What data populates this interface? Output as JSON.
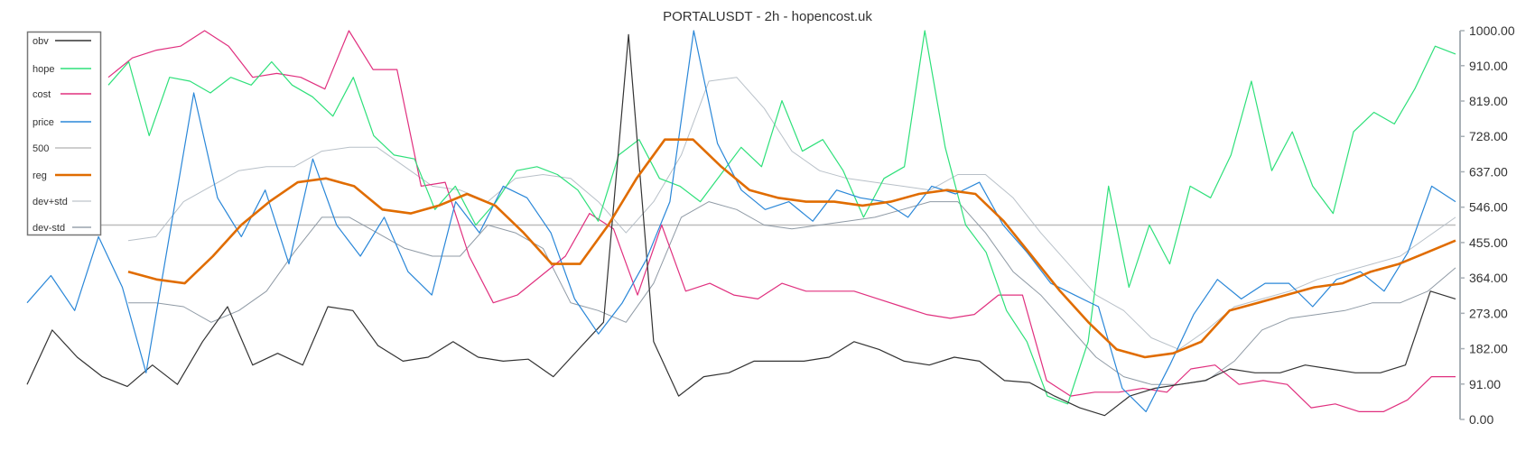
{
  "title": "PORTALUSDT - 2h - hopencost.uk",
  "chart_data": {
    "type": "line",
    "title": "PORTALUSDT - 2h - hopencost.uk",
    "xlabel": "",
    "ylabel": "",
    "ylim": [
      0,
      1000
    ],
    "y_ticks": [
      "1000.00",
      "910.00",
      "819.00",
      "728.00",
      "637.00",
      "546.00",
      "455.00",
      "364.00",
      "273.00",
      "182.00",
      "91.00",
      "0.00"
    ],
    "y_tick_values": [
      1000,
      910,
      819,
      728,
      637,
      546,
      455,
      364,
      273,
      182,
      91,
      0
    ],
    "grid": false,
    "legend_position": "top-left",
    "x": [
      0,
      1,
      2,
      3,
      4,
      5,
      6,
      7,
      8,
      9,
      10,
      11,
      12,
      13,
      14,
      15,
      16,
      17,
      18,
      19,
      20,
      21,
      22,
      23,
      24,
      25,
      26,
      27,
      28,
      29,
      30,
      31,
      32,
      33,
      34,
      35,
      36,
      37,
      38,
      39,
      40
    ],
    "series": [
      {
        "name": "obv",
        "color": "#333333",
        "width": 1.2,
        "values": [
          90,
          230,
          160,
          110,
          85,
          140,
          90,
          200,
          290,
          140,
          170,
          140,
          290,
          280,
          190,
          150,
          160,
          200,
          160,
          150,
          155,
          110,
          180,
          250,
          990,
          200,
          60,
          110,
          120,
          150,
          150,
          150,
          160,
          200,
          180,
          150,
          140,
          160,
          150,
          100,
          95,
          60,
          30,
          10,
          60,
          80,
          90,
          100,
          130,
          120,
          120,
          140,
          130,
          120,
          120,
          140,
          330,
          310
        ]
      },
      {
        "name": "hope",
        "color": "#2ee07a",
        "width": 1.2,
        "values": [
          860,
          920,
          730,
          880,
          870,
          840,
          880,
          860,
          920,
          860,
          830,
          780,
          880,
          730,
          680,
          670,
          540,
          600,
          500,
          560,
          640,
          650,
          630,
          590,
          510,
          680,
          720,
          620,
          600,
          560,
          630,
          700,
          650,
          820,
          690,
          720,
          640,
          520,
          620,
          650,
          1000,
          700,
          500,
          430,
          280,
          200,
          60,
          40,
          200,
          600,
          340,
          500,
          400,
          600,
          570,
          680,
          870,
          640,
          740,
          600,
          530,
          740,
          790,
          760,
          850,
          960,
          940
        ]
      },
      {
        "name": "cost",
        "color": "#e0307f",
        "width": 1.2,
        "values": [
          880,
          930,
          950,
          960,
          1000,
          960,
          880,
          890,
          880,
          850,
          1000,
          900,
          900,
          600,
          610,
          420,
          300,
          320,
          370,
          420,
          530,
          490,
          320,
          500,
          330,
          350,
          320,
          310,
          350,
          330,
          330,
          330,
          310,
          290,
          270,
          260,
          270,
          320,
          320,
          100,
          60,
          70,
          70,
          80,
          70,
          130,
          140,
          90,
          100,
          90,
          30,
          40,
          20,
          20,
          50,
          110,
          110
        ]
      },
      {
        "name": "price",
        "color": "#2a87d8",
        "width": 1.2,
        "values": [
          300,
          370,
          280,
          470,
          340,
          120,
          480,
          840,
          570,
          470,
          590,
          400,
          670,
          500,
          420,
          520,
          380,
          320,
          560,
          480,
          600,
          570,
          480,
          310,
          220,
          300,
          410,
          560,
          1000,
          710,
          590,
          540,
          560,
          510,
          590,
          570,
          560,
          520,
          600,
          580,
          610,
          500,
          430,
          350,
          320,
          290,
          80,
          20,
          140,
          270,
          360,
          310,
          350,
          350,
          290,
          360,
          380,
          330,
          430,
          600,
          560
        ]
      },
      {
        "name": "500",
        "color": "#bdbdbd",
        "width": 1.6,
        "values": [
          500,
          500
        ]
      },
      {
        "name": "reg",
        "color": "#e06c00",
        "width": 2.6,
        "values": [
          380,
          360,
          350,
          420,
          500,
          560,
          610,
          620,
          600,
          540,
          530,
          550,
          580,
          550,
          480,
          400,
          400,
          500,
          620,
          720,
          720,
          650,
          590,
          570,
          560,
          560,
          550,
          560,
          580,
          590,
          580,
          510,
          420,
          330,
          250,
          180,
          160,
          170,
          200,
          280,
          300,
          320,
          340,
          350,
          380,
          400,
          430,
          460
        ]
      },
      {
        "name": "dev+std",
        "color": "#b8c0c8",
        "width": 1.0,
        "values": [
          460,
          470,
          560,
          600,
          640,
          650,
          650,
          690,
          700,
          700,
          650,
          600,
          590,
          560,
          620,
          630,
          620,
          560,
          480,
          560,
          680,
          870,
          880,
          800,
          690,
          640,
          620,
          610,
          600,
          590,
          630,
          630,
          570,
          480,
          400,
          320,
          280,
          210,
          180,
          230,
          290,
          310,
          330,
          360,
          380,
          400,
          420,
          470,
          520
        ]
      },
      {
        "name": "dev-std",
        "color": "#8f9aa5",
        "width": 1.0,
        "values": [
          300,
          300,
          290,
          250,
          280,
          330,
          430,
          520,
          520,
          480,
          440,
          420,
          420,
          500,
          480,
          440,
          300,
          280,
          250,
          350,
          520,
          560,
          540,
          500,
          490,
          500,
          510,
          520,
          540,
          560,
          560,
          480,
          380,
          320,
          240,
          160,
          110,
          90,
          90,
          100,
          150,
          230,
          260,
          270,
          280,
          300,
          300,
          330,
          390
        ]
      }
    ]
  },
  "legend": {
    "items": [
      {
        "label": "obv",
        "color": "#333333",
        "width": 1.5
      },
      {
        "label": "hope",
        "color": "#2ee07a",
        "width": 1.5
      },
      {
        "label": "cost",
        "color": "#e0307f",
        "width": 1.5
      },
      {
        "label": "price",
        "color": "#2a87d8",
        "width": 1.5
      },
      {
        "label": "500",
        "color": "#bdbdbd",
        "width": 1.5
      },
      {
        "label": "reg",
        "color": "#e06c00",
        "width": 2.5
      },
      {
        "label": "dev+std",
        "color": "#c8ced4",
        "width": 1.5
      },
      {
        "label": "dev-std",
        "color": "#9aa4ad",
        "width": 1.5
      }
    ]
  }
}
